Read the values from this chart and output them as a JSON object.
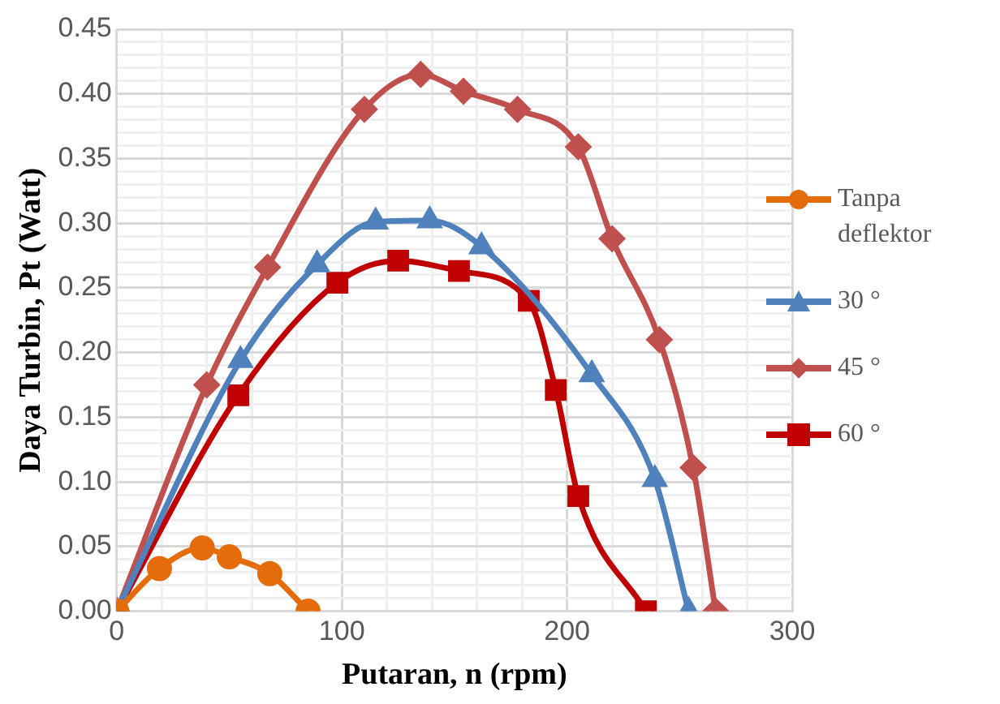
{
  "chart_data": {
    "type": "line",
    "xlabel": "Putaran, n (rpm)",
    "ylabel": "Daya Turbin, Pt (Watt)",
    "xlim": [
      0,
      300
    ],
    "ylim": [
      0,
      0.45
    ],
    "xticks": [
      0,
      {
        "value": 20,
        "label": null
      },
      {
        "value": 40,
        "label": null
      },
      {
        "value": 60,
        "label": null
      },
      {
        "value": 80,
        "label": null
      },
      100,
      {
        "value": 120,
        "label": null
      },
      {
        "value": 140,
        "label": null
      },
      {
        "value": 160,
        "label": null
      },
      {
        "value": 180,
        "label": null
      },
      200,
      {
        "value": 220,
        "label": null
      },
      {
        "value": 240,
        "label": null
      },
      {
        "value": 260,
        "label": null
      },
      {
        "value": 280,
        "label": null
      },
      300
    ],
    "yticks": [
      {
        "value": 0,
        "label": "0.00"
      },
      {
        "value": 0.01,
        "label": null
      },
      {
        "value": 0.02,
        "label": null
      },
      {
        "value": 0.03,
        "label": null
      },
      {
        "value": 0.04,
        "label": null
      },
      {
        "value": 0.05,
        "label": "0.05"
      },
      {
        "value": 0.06,
        "label": null
      },
      {
        "value": 0.07,
        "label": null
      },
      {
        "value": 0.08,
        "label": null
      },
      {
        "value": 0.09,
        "label": null
      },
      {
        "value": 0.1,
        "label": "0.10"
      },
      {
        "value": 0.11,
        "label": null
      },
      {
        "value": 0.12,
        "label": null
      },
      {
        "value": 0.13,
        "label": null
      },
      {
        "value": 0.14,
        "label": null
      },
      {
        "value": 0.15,
        "label": "0.15"
      },
      {
        "value": 0.16,
        "label": null
      },
      {
        "value": 0.17,
        "label": null
      },
      {
        "value": 0.18,
        "label": null
      },
      {
        "value": 0.19,
        "label": null
      },
      {
        "value": 0.2,
        "label": "0.20"
      },
      {
        "value": 0.21,
        "label": null
      },
      {
        "value": 0.22,
        "label": null
      },
      {
        "value": 0.23,
        "label": null
      },
      {
        "value": 0.24,
        "label": null
      },
      {
        "value": 0.25,
        "label": "0.25"
      },
      {
        "value": 0.26,
        "label": null
      },
      {
        "value": 0.27,
        "label": null
      },
      {
        "value": 0.28,
        "label": null
      },
      {
        "value": 0.29,
        "label": null
      },
      {
        "value": 0.3,
        "label": "0.30"
      },
      {
        "value": 0.31,
        "label": null
      },
      {
        "value": 0.32,
        "label": null
      },
      {
        "value": 0.33,
        "label": null
      },
      {
        "value": 0.34,
        "label": null
      },
      {
        "value": 0.35,
        "label": "0.35"
      },
      {
        "value": 0.36,
        "label": null
      },
      {
        "value": 0.37,
        "label": null
      },
      {
        "value": 0.38,
        "label": null
      },
      {
        "value": 0.39,
        "label": null
      },
      {
        "value": 0.4,
        "label": "0.40"
      },
      {
        "value": 0.41,
        "label": null
      },
      {
        "value": 0.42,
        "label": null
      },
      {
        "value": 0.43,
        "label": null
      },
      {
        "value": 0.44,
        "label": null
      },
      {
        "value": 0.45,
        "label": "0.45"
      }
    ],
    "grid": true,
    "legend": "right",
    "line_style": "solid",
    "series": [
      {
        "name": "Tanpa deflektor",
        "color": "#e46c0a",
        "marker": "circle",
        "x": [
          0,
          19,
          38,
          50,
          68,
          85
        ],
        "values": [
          0,
          0.033,
          0.049,
          0.042,
          0.029,
          0
        ]
      },
      {
        "name": "30 °",
        "color": "#4f81bd",
        "marker": "triangle",
        "x": [
          0,
          55,
          89,
          115,
          139,
          162,
          211,
          239,
          254
        ],
        "values": [
          0,
          0.194,
          0.268,
          0.301,
          0.302,
          0.282,
          0.183,
          0.102,
          0
        ]
      },
      {
        "name": "45 °",
        "color": "#c0504d",
        "marker": "diamond",
        "x": [
          0,
          40,
          67,
          110,
          135,
          154,
          178,
          205,
          220,
          241,
          256,
          266
        ],
        "values": [
          0,
          0.175,
          0.266,
          0.388,
          0.415,
          0.402,
          0.388,
          0.359,
          0.288,
          0.21,
          0.111,
          0
        ]
      },
      {
        "name": "60 °",
        "color": "#c00000",
        "marker": "square",
        "x": [
          0,
          54,
          98,
          125,
          152,
          183,
          195,
          205,
          235
        ],
        "values": [
          0,
          0.167,
          0.254,
          0.271,
          0.263,
          0.24,
          0.171,
          0.089,
          0
        ]
      }
    ]
  }
}
